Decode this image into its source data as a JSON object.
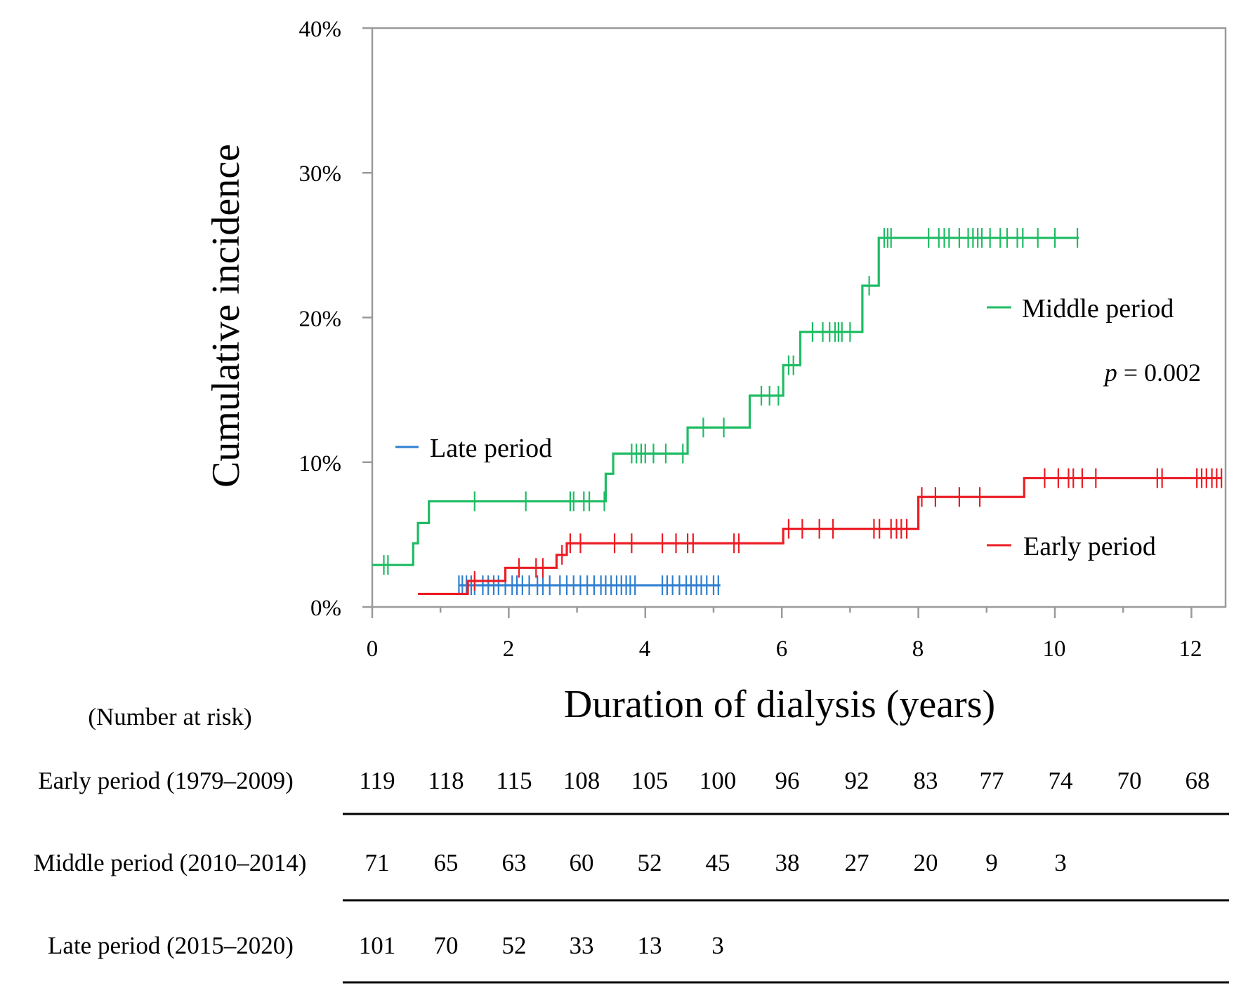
{
  "chart_data": {
    "type": "line",
    "subtype": "step (cumulative incidence)",
    "xlabel": "Duration of dialysis (years)",
    "ylabel": "Cumulative incidence",
    "xlim": [
      0,
      12.5
    ],
    "ylim": [
      0,
      40
    ],
    "x_ticks": [
      0,
      2,
      4,
      6,
      8,
      10,
      12
    ],
    "x_tick_labels": [
      "0",
      "2",
      "4",
      "6",
      "8",
      "10",
      "12"
    ],
    "y_ticks": [
      0,
      10,
      20,
      30,
      40
    ],
    "y_tick_labels": [
      "0%",
      "10%",
      "20%",
      "30%",
      "40%"
    ],
    "annotation": {
      "italic": "p",
      "rest": " = 0.002"
    },
    "series": [
      {
        "key": "middle",
        "name": "Middle period",
        "color": "#1ebc63",
        "x_end": 10.35,
        "steps": [
          [
            0,
            2.9
          ],
          [
            0.6,
            4.4
          ],
          [
            0.67,
            5.8
          ],
          [
            0.83,
            7.3
          ],
          [
            3.42,
            9.2
          ],
          [
            3.53,
            10.6
          ],
          [
            4.62,
            12.4
          ],
          [
            5.53,
            14.6
          ],
          [
            6.02,
            16.7
          ],
          [
            6.27,
            19.0
          ],
          [
            7.18,
            22.2
          ],
          [
            7.42,
            25.5
          ]
        ],
        "censored": [
          0.17,
          0.23,
          1.5,
          2.25,
          2.9,
          2.95,
          3.1,
          3.18,
          3.4,
          3.8,
          3.87,
          3.94,
          4.0,
          4.12,
          4.3,
          4.55,
          4.85,
          5.15,
          5.7,
          5.82,
          5.95,
          6.1,
          6.17,
          6.45,
          6.6,
          6.7,
          6.78,
          6.83,
          6.88,
          7.0,
          7.28,
          7.5,
          7.55,
          7.6,
          8.15,
          8.3,
          8.38,
          8.45,
          8.6,
          8.73,
          8.8,
          8.87,
          8.93,
          9.05,
          9.2,
          9.3,
          9.45,
          9.53,
          9.75,
          10.0,
          10.33
        ]
      },
      {
        "key": "early",
        "name": "Early period",
        "color": "#ec1c24",
        "x_end": 12.45,
        "steps": [
          [
            0.67,
            0.9
          ],
          [
            1.4,
            1.8
          ],
          [
            1.95,
            2.7
          ],
          [
            2.7,
            3.6
          ],
          [
            2.85,
            4.4
          ],
          [
            6.02,
            5.4
          ],
          [
            8.0,
            7.6
          ],
          [
            9.55,
            8.9
          ]
        ],
        "censored": [
          1.5,
          2.15,
          2.4,
          2.5,
          2.78,
          2.9,
          3.05,
          3.55,
          3.8,
          4.25,
          4.45,
          4.62,
          4.7,
          5.3,
          5.37,
          6.1,
          6.3,
          6.55,
          6.75,
          7.35,
          7.43,
          7.6,
          7.68,
          7.75,
          7.83,
          8.05,
          8.25,
          8.6,
          8.9,
          9.85,
          10.05,
          10.2,
          10.27,
          10.4,
          10.6,
          11.5,
          11.57,
          12.08,
          12.15,
          12.22,
          12.3,
          12.37,
          12.44
        ]
      },
      {
        "key": "late",
        "name": "Late period",
        "color": "#2f7fd0",
        "x_end": 5.1,
        "steps": [
          [
            1.27,
            1.5
          ]
        ],
        "censored": [
          1.27,
          1.32,
          1.38,
          1.45,
          1.5,
          1.62,
          1.7,
          1.78,
          1.85,
          1.95,
          2.05,
          2.12,
          2.2,
          2.3,
          2.42,
          2.5,
          2.6,
          2.75,
          2.85,
          2.95,
          3.05,
          3.15,
          3.25,
          3.35,
          3.42,
          3.5,
          3.58,
          3.65,
          3.72,
          3.78,
          3.85,
          4.25,
          4.32,
          4.4,
          4.5,
          4.6,
          4.67,
          4.75,
          4.82,
          4.9,
          5.0,
          5.07
        ]
      }
    ]
  },
  "legend": {
    "middle": "Middle period",
    "late": "Late period",
    "early": "Early period"
  },
  "risk_table": {
    "title": "(Number at risk)",
    "rows": [
      {
        "key": "early",
        "label": "Early period (1979–2009)",
        "values": [
          "119",
          "118",
          "115",
          "108",
          "105",
          "100",
          "96",
          "92",
          "83",
          "77",
          "74",
          "70",
          "68"
        ]
      },
      {
        "key": "middle",
        "label": "Middle period (2010–2014)",
        "values": [
          "71",
          "65",
          "63",
          "60",
          "52",
          "45",
          "38",
          "27",
          "20",
          "9",
          "3"
        ]
      },
      {
        "key": "late",
        "label": "Late period (2015–2020)",
        "values": [
          "101",
          "70",
          "52",
          "33",
          "13",
          "3"
        ]
      }
    ]
  }
}
